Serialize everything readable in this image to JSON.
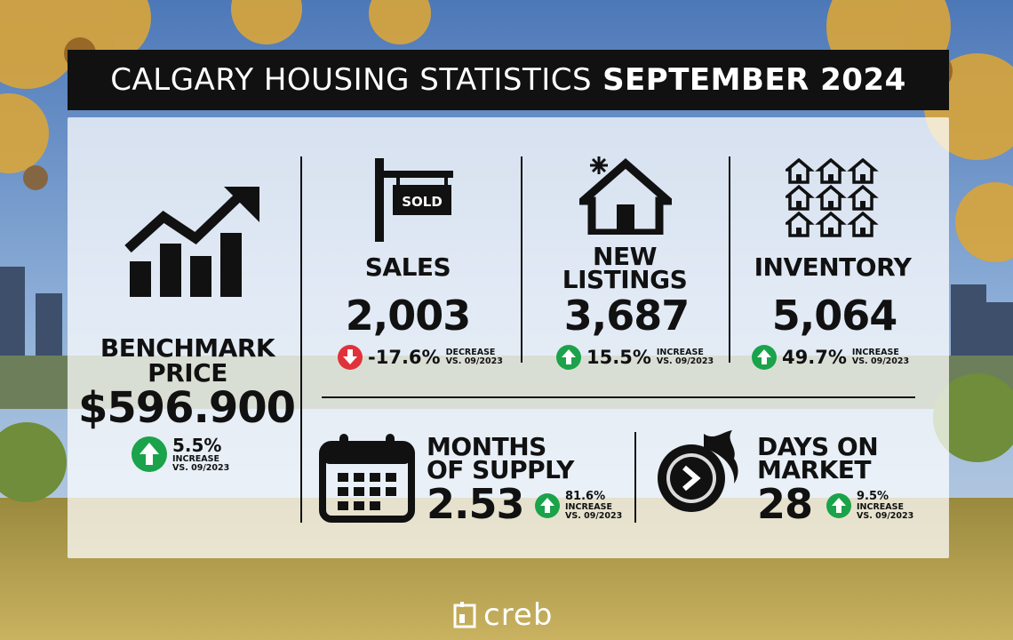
{
  "header": {
    "title_light": "CALGARY HOUSING STATISTICS",
    "title_bold": "SEPTEMBER 2024"
  },
  "benchmark": {
    "label_line1": "BENCHMARK",
    "label_line2": "PRICE",
    "value": "$596.900",
    "change": "5.5%",
    "direction": "increase",
    "note_line1": "INCREASE",
    "note_line2": "VS. 09/2023"
  },
  "sales": {
    "label": "SALES",
    "value": "2,003",
    "change": "-17.6%",
    "direction": "decrease",
    "note_line1": "DECREASE",
    "note_line2": "VS. 09/2023",
    "sign_text": "SOLD"
  },
  "new_listings": {
    "label_line1": "NEW",
    "label_line2": "LISTINGS",
    "value": "3,687",
    "change": "15.5%",
    "direction": "increase",
    "note_line1": "INCREASE",
    "note_line2": "VS. 09/2023"
  },
  "inventory": {
    "label": "INVENTORY",
    "value": "5,064",
    "change": "49.7%",
    "direction": "increase",
    "note_line1": "INCREASE",
    "note_line2": "VS. 09/2023"
  },
  "months_supply": {
    "label_line1": "MONTHS",
    "label_line2": "OF SUPPLY",
    "value": "2.53",
    "change": "81.6%",
    "direction": "increase",
    "note_line1": "INCREASE",
    "note_line2": "VS. 09/2023"
  },
  "days_on_market": {
    "label_line1": "DAYS ON",
    "label_line2": "MARKET",
    "value": "28",
    "change": "9.5%",
    "direction": "increase",
    "note_line1": "INCREASE",
    "note_line2": "VS. 09/2023"
  },
  "footer": {
    "logo_text": "creb"
  },
  "colors": {
    "increase": "#1aa34a",
    "decrease": "#e0323a",
    "title_bg": "#111111",
    "ink": "#111111"
  },
  "icons": [
    "chart-growth-icon",
    "sold-sign-icon",
    "house-icon",
    "houses-grid-icon",
    "calendar-icon",
    "fast-clock-icon",
    "creb-logo-icon"
  ]
}
